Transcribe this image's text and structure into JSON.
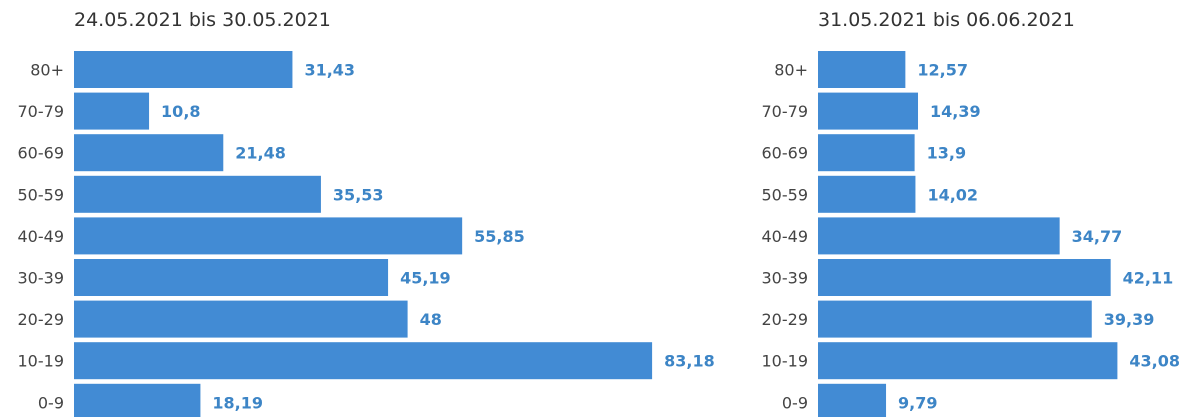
{
  "chart_data": [
    {
      "type": "bar",
      "orientation": "horizontal",
      "title": "24.05.2021 bis 30.05.2021",
      "categories": [
        "80+",
        "70-79",
        "60-69",
        "50-59",
        "40-49",
        "30-39",
        "20-29",
        "10-19",
        "0-9"
      ],
      "values": [
        31.43,
        10.8,
        21.48,
        35.53,
        55.85,
        45.19,
        48,
        83.18,
        18.19
      ],
      "value_labels": [
        "31,43",
        "10,8",
        "21,48",
        "35,53",
        "55,85",
        "45,19",
        "48",
        "83,18",
        "18,19"
      ],
      "xlim": [
        0,
        100
      ],
      "grid": false,
      "bar_color": "#428bd4",
      "label_color": "#3d85c6"
    },
    {
      "type": "bar",
      "orientation": "horizontal",
      "title": "31.05.2021 bis 06.06.2021",
      "categories": [
        "80+",
        "70-79",
        "60-69",
        "50-59",
        "40-49",
        "30-39",
        "20-29",
        "10-19",
        "0-9"
      ],
      "values": [
        12.57,
        14.39,
        13.9,
        14.02,
        34.77,
        42.11,
        39.39,
        43.08,
        9.79
      ],
      "value_labels": [
        "12,57",
        "14,39",
        "13,9",
        "14,02",
        "34,77",
        "42,11",
        "39,39",
        "43,08",
        "9,79"
      ],
      "xlim": [
        0,
        50
      ],
      "grid": false,
      "bar_color": "#428bd4",
      "label_color": "#3d85c6"
    }
  ]
}
